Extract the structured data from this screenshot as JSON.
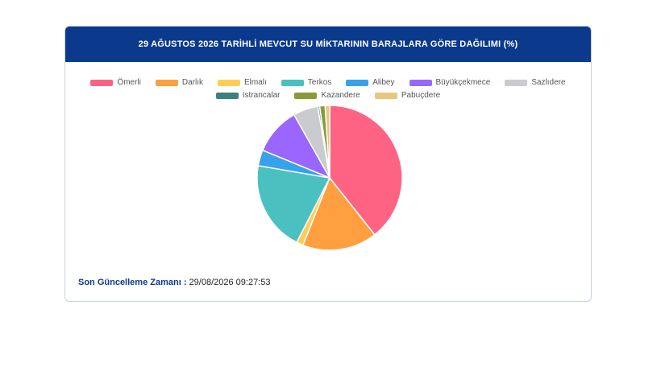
{
  "header": {
    "title": "29 AĞUSTOS 2026 TARİHLİ MEVCUT SU MİKTARININ BARAJLARA GÖRE DAĞILIMI (%)"
  },
  "footer": {
    "label": "Son Güncelleme Zamanı :",
    "value": "29/08/2026 09:27:53"
  },
  "chart_data": {
    "type": "pie",
    "title": "29 AĞUSTOS 2026 TARİHLİ MEVCUT SU MİKTARININ BARAJLARA GÖRE DAĞILIMI (%)",
    "legend_position": "top",
    "categories": [
      "Ömerli",
      "Darlık",
      "Elmalı",
      "Terkos",
      "Alibey",
      "Büyükçekmece",
      "Sazlıdere",
      "Istrancalar",
      "Kazandere",
      "Pabuçdere"
    ],
    "values": [
      39.0,
      16.5,
      1.5,
      20.0,
      3.5,
      10.5,
      5.5,
      0.4,
      1.2,
      1.0
    ],
    "colors": [
      "#ff6384",
      "#ff9f40",
      "#ffcd56",
      "#4bc0c0",
      "#36a2eb",
      "#9966ff",
      "#c9cbcf",
      "#3e7f7f",
      "#8a9a3b",
      "#e8c77d"
    ]
  }
}
